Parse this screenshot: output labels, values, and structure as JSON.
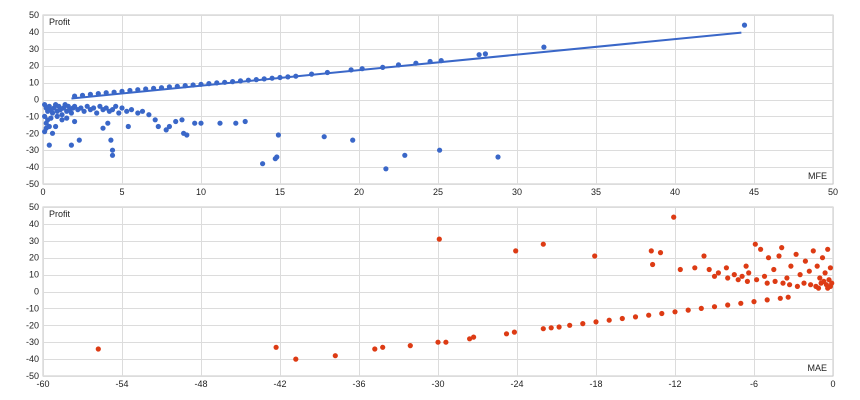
{
  "chart_data": [
    {
      "type": "scatter",
      "ylabel": "Profit",
      "xlabel": "MFE",
      "xlim": [
        0,
        50
      ],
      "ylim": [
        -50,
        50
      ],
      "xticks": [
        0,
        5,
        10,
        15,
        20,
        25,
        30,
        35,
        40,
        45,
        50
      ],
      "yticks": [
        50,
        40,
        30,
        20,
        10,
        0,
        -10,
        -20,
        -30,
        -40,
        -50
      ],
      "grid": true,
      "color": "#3a67c8",
      "trendline": {
        "x": [
          1.8,
          44.2
        ],
        "y": [
          0.6,
          39.6
        ]
      },
      "points": [
        [
          0.1,
          -3
        ],
        [
          0.2,
          -5
        ],
        [
          0.3,
          -7
        ],
        [
          0.4,
          -4
        ],
        [
          0.5,
          -6
        ],
        [
          0.6,
          -8
        ],
        [
          0.7,
          -5
        ],
        [
          0.8,
          -3
        ],
        [
          0.9,
          -7
        ],
        [
          1.0,
          -4
        ],
        [
          1.1,
          -6
        ],
        [
          1.2,
          -9
        ],
        [
          1.3,
          -5
        ],
        [
          1.4,
          -3
        ],
        [
          1.5,
          -7
        ],
        [
          1.6,
          -4
        ],
        [
          1.7,
          -6
        ],
        [
          1.8,
          -8
        ],
        [
          1.9,
          -5
        ],
        [
          2.0,
          -4
        ],
        [
          2.2,
          -6
        ],
        [
          2.4,
          -5
        ],
        [
          2.6,
          -7
        ],
        [
          2.8,
          -4
        ],
        [
          3.0,
          -6
        ],
        [
          3.2,
          -5
        ],
        [
          3.4,
          -8
        ],
        [
          3.6,
          -4
        ],
        [
          3.8,
          -6
        ],
        [
          4.0,
          -5
        ],
        [
          4.2,
          -7
        ],
        [
          4.4,
          -6
        ],
        [
          4.6,
          -4
        ],
        [
          4.8,
          -8
        ],
        [
          5.0,
          -5
        ],
        [
          5.3,
          -7
        ],
        [
          5.6,
          -6
        ],
        [
          6.0,
          -8
        ],
        [
          6.3,
          -7
        ],
        [
          6.7,
          -9
        ],
        [
          0.1,
          -10
        ],
        [
          0.3,
          -12
        ],
        [
          0.2,
          -14
        ],
        [
          0.5,
          -11
        ],
        [
          0.4,
          -16
        ],
        [
          0.9,
          -10
        ],
        [
          1.2,
          -12
        ],
        [
          1.5,
          -11
        ],
        [
          2.0,
          -13
        ],
        [
          0.1,
          -19
        ],
        [
          0.2,
          -17
        ],
        [
          0.8,
          -16
        ],
        [
          0.4,
          -27
        ],
        [
          0.6,
          -20
        ],
        [
          1.8,
          -27
        ],
        [
          2.3,
          -24
        ],
        [
          3.8,
          -17
        ],
        [
          4.1,
          -14
        ],
        [
          4.3,
          -24
        ],
        [
          4.4,
          -30
        ],
        [
          4.4,
          -33
        ],
        [
          5.4,
          -16
        ],
        [
          7.1,
          -12
        ],
        [
          7.3,
          -16
        ],
        [
          7.8,
          -18
        ],
        [
          8.0,
          -16
        ],
        [
          8.4,
          -13
        ],
        [
          8.8,
          -12
        ],
        [
          8.9,
          -20
        ],
        [
          9.1,
          -21
        ],
        [
          9.6,
          -14
        ],
        [
          10.0,
          -14
        ],
        [
          11.2,
          -14
        ],
        [
          12.2,
          -14
        ],
        [
          12.8,
          -13
        ],
        [
          13.9,
          -38
        ],
        [
          14.7,
          -35
        ],
        [
          14.8,
          -34
        ],
        [
          14.9,
          -21
        ],
        [
          17.8,
          -22
        ],
        [
          19.6,
          -24
        ],
        [
          21.7,
          -41
        ],
        [
          22.9,
          -33
        ],
        [
          25.1,
          -30
        ],
        [
          28.8,
          -34
        ],
        [
          2.0,
          2
        ],
        [
          2.5,
          2.5
        ],
        [
          3.0,
          3
        ],
        [
          3.5,
          3.5
        ],
        [
          4.0,
          4
        ],
        [
          4.5,
          4.3
        ],
        [
          5.0,
          4.8
        ],
        [
          5.5,
          5.3
        ],
        [
          6.0,
          5.8
        ],
        [
          6.5,
          6.2
        ],
        [
          7.0,
          6.6
        ],
        [
          7.5,
          7
        ],
        [
          8.0,
          7.5
        ],
        [
          8.5,
          7.8
        ],
        [
          9.0,
          8.2
        ],
        [
          9.5,
          8.6
        ],
        [
          10.0,
          9
        ],
        [
          10.5,
          9.4
        ],
        [
          11.0,
          9.8
        ],
        [
          11.5,
          10.2
        ],
        [
          12.0,
          10.6
        ],
        [
          12.5,
          11
        ],
        [
          13.0,
          11.4
        ],
        [
          13.5,
          11.8
        ],
        [
          14.0,
          12.2
        ],
        [
          14.5,
          12.6
        ],
        [
          15.0,
          13
        ],
        [
          15.5,
          13.4
        ],
        [
          16.0,
          13.8
        ],
        [
          17.0,
          15
        ],
        [
          18.0,
          16
        ],
        [
          19.5,
          17.5
        ],
        [
          20.2,
          18.2
        ],
        [
          21.5,
          19
        ],
        [
          22.5,
          20.5
        ],
        [
          23.6,
          21.5
        ],
        [
          24.5,
          22.5
        ],
        [
          25.2,
          23
        ],
        [
          27.6,
          26.5
        ],
        [
          28.0,
          27
        ],
        [
          31.7,
          31
        ],
        [
          44.4,
          44
        ]
      ]
    },
    {
      "type": "scatter",
      "ylabel": "Profit",
      "xlabel": "MAE",
      "xlim": [
        -60,
        0
      ],
      "ylim": [
        -50,
        50
      ],
      "xticks": [
        -60,
        -54,
        -48,
        -42,
        -36,
        -30,
        -24,
        -18,
        -12,
        -6,
        0
      ],
      "yticks": [
        50,
        40,
        30,
        20,
        10,
        0,
        -10,
        -20,
        -30,
        -40,
        -50
      ],
      "grid": true,
      "color": "#dd3b14",
      "points": [
        [
          -55.8,
          -34
        ],
        [
          -42.3,
          -33
        ],
        [
          -40.8,
          -40
        ],
        [
          -37.8,
          -38
        ],
        [
          -34.8,
          -34
        ],
        [
          -34.2,
          -33
        ],
        [
          -32.1,
          -32
        ],
        [
          -30.0,
          -30
        ],
        [
          -29.4,
          -30
        ],
        [
          -27.6,
          -28
        ],
        [
          -27.3,
          -27
        ],
        [
          -24.8,
          -25
        ],
        [
          -24.2,
          -24
        ],
        [
          -22.0,
          -22
        ],
        [
          -21.4,
          -21.5
        ],
        [
          -20.8,
          -21
        ],
        [
          -20.0,
          -20
        ],
        [
          -19.0,
          -19
        ],
        [
          -18.0,
          -18
        ],
        [
          -17.0,
          -17
        ],
        [
          -16.0,
          -16
        ],
        [
          -15.0,
          -15
        ],
        [
          -14.0,
          -14
        ],
        [
          -13.0,
          -13
        ],
        [
          -12.0,
          -12
        ],
        [
          -11.0,
          -11
        ],
        [
          -10.0,
          -10
        ],
        [
          -9.0,
          -9
        ],
        [
          -8.0,
          -8
        ],
        [
          -7.0,
          -7
        ],
        [
          -6.0,
          -6
        ],
        [
          -5.0,
          -5
        ],
        [
          -4.0,
          -4
        ],
        [
          -3.4,
          -3.4
        ],
        [
          -29.9,
          31
        ],
        [
          -24.1,
          24
        ],
        [
          -22.0,
          28
        ],
        [
          -18.1,
          21
        ],
        [
          -13.8,
          24
        ],
        [
          -13.7,
          16
        ],
        [
          -13.1,
          23
        ],
        [
          -12.1,
          44
        ],
        [
          -11.6,
          13
        ],
        [
          -10.5,
          14
        ],
        [
          -9.8,
          21
        ],
        [
          -9.4,
          13
        ],
        [
          -8.7,
          11
        ],
        [
          -8.1,
          14
        ],
        [
          -7.5,
          10
        ],
        [
          -6.9,
          9
        ],
        [
          -6.6,
          15
        ],
        [
          -6.4,
          11
        ],
        [
          -5.9,
          28
        ],
        [
          -5.5,
          25
        ],
        [
          -5.2,
          9
        ],
        [
          -4.9,
          20
        ],
        [
          -4.5,
          13
        ],
        [
          -4.1,
          21
        ],
        [
          -3.9,
          26
        ],
        [
          -3.5,
          8
        ],
        [
          -3.2,
          15
        ],
        [
          -2.8,
          22
        ],
        [
          -2.5,
          10
        ],
        [
          -2.1,
          18
        ],
        [
          -1.8,
          12
        ],
        [
          -1.5,
          24
        ],
        [
          -1.2,
          15
        ],
        [
          -1.0,
          8
        ],
        [
          -0.8,
          20
        ],
        [
          -0.6,
          11
        ],
        [
          -0.4,
          25
        ],
        [
          -0.3,
          7
        ],
        [
          -0.2,
          14
        ],
        [
          -0.1,
          5
        ],
        [
          -0.2,
          3
        ],
        [
          -0.5,
          4
        ],
        [
          -0.9,
          5
        ],
        [
          -1.3,
          3
        ],
        [
          -1.7,
          4
        ],
        [
          -2.2,
          5
        ],
        [
          -2.7,
          3
        ],
        [
          -3.3,
          4
        ],
        [
          -3.8,
          5
        ],
        [
          -4.4,
          6
        ],
        [
          -5.0,
          5
        ],
        [
          -5.8,
          7
        ],
        [
          -6.5,
          6
        ],
        [
          -7.2,
          7
        ],
        [
          -8.0,
          8
        ],
        [
          -9.0,
          9
        ],
        [
          -0.4,
          2
        ],
        [
          -0.7,
          6
        ],
        [
          -1.1,
          2
        ]
      ]
    }
  ]
}
